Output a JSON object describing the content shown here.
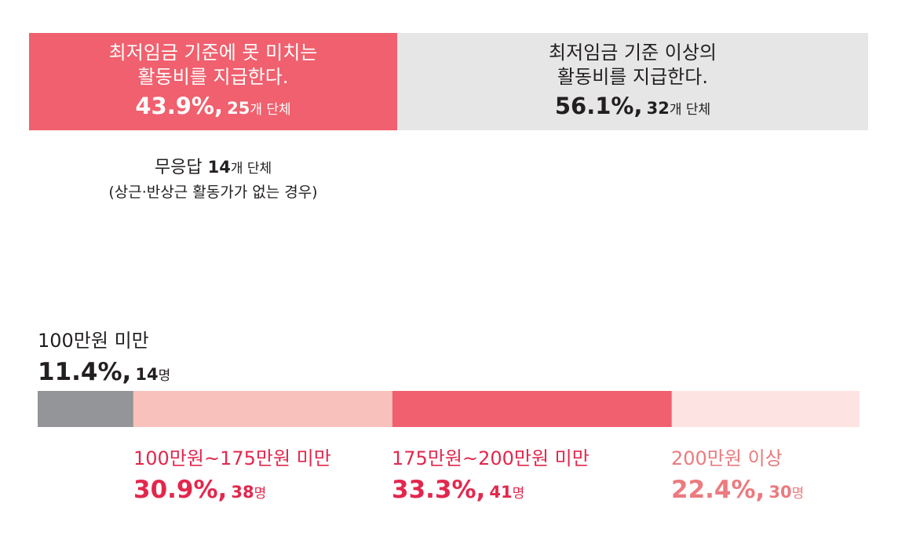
{
  "colors": {
    "coral": "#f0606e",
    "light_gray": "#e6e6e7",
    "dark_gray": "#939598",
    "light_pink": "#f8c1bc",
    "pale_pink": "#fde4e3",
    "crimson": "#e2274d",
    "salmon": "#ec7a7e"
  },
  "top_split": {
    "left": {
      "line1": "최저임금 기준에 못 미치는",
      "line2": "활동비를 지급한다.",
      "percent": "43.9%",
      "separator": ",",
      "count": "25",
      "count_unit": "개 단체"
    },
    "right": {
      "line1": "최저임금 기준 이상의",
      "line2": "활동비를 지급한다.",
      "percent": "56.1%",
      "separator": ",",
      "count": "32",
      "count_unit": "개 단체"
    },
    "no_response": {
      "label": "무응답",
      "count": "14",
      "count_unit": "개 단체",
      "note": "(상근·반상근 활동가가 없는 경우)"
    }
  },
  "chart_data": {
    "type": "bar",
    "orientation": "horizontal-stacked",
    "categories": [
      "100만원 미만",
      "100만원~175만원 미만",
      "175만원~200만원 미만",
      "200만원 이상"
    ],
    "values": [
      11.4,
      30.9,
      33.3,
      22.4
    ],
    "counts": [
      14,
      38,
      41,
      30
    ],
    "percent_labels": [
      "11.4%",
      "30.9%",
      "33.3%",
      "22.4%"
    ],
    "count_labels": [
      "14",
      "38",
      "41",
      "30"
    ],
    "count_unit": "명",
    "separator": ",",
    "segment_colors": [
      "#939598",
      "#f8c1bc",
      "#f0606e",
      "#fde4e3"
    ],
    "label_colors": [
      "#231f20",
      "#e2274d",
      "#e2274d",
      "#ec7a7e"
    ]
  }
}
